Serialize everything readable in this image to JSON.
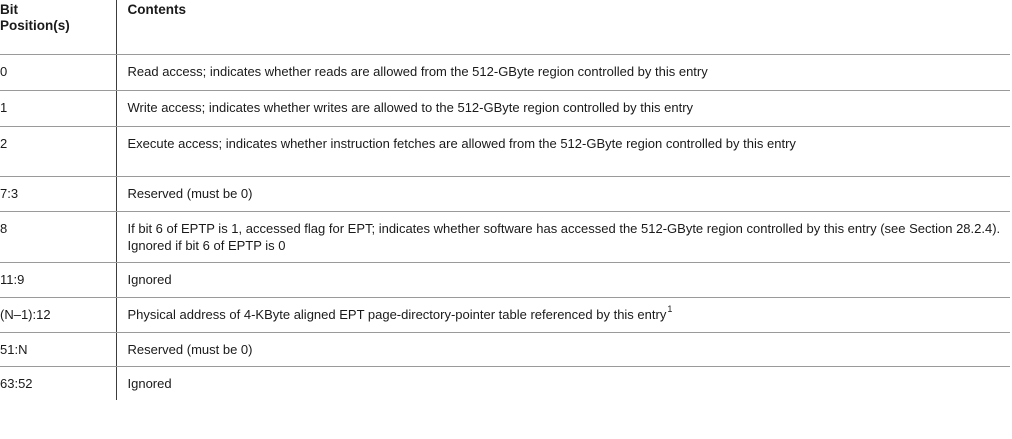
{
  "table": {
    "headers": [
      "Bit\nPosition(s)",
      "Contents"
    ],
    "header_col1_line1": "Bit",
    "header_col1_line2": "Position(s)",
    "header_col2": "Contents",
    "rows": [
      {
        "bits": "0",
        "contents": "Read access; indicates whether reads are allowed from the 512-GByte region controlled by this entry"
      },
      {
        "bits": "1",
        "contents": "Write access; indicates whether writes are allowed to the 512-GByte region controlled by this entry"
      },
      {
        "bits": "2",
        "contents": "Execute access; indicates whether instruction fetches are allowed from the 512-GByte region controlled by this entry"
      },
      {
        "bits": "7:3",
        "contents": "Reserved (must be 0)"
      },
      {
        "bits": "8",
        "contents": "If bit 6 of EPTP is 1, accessed flag for EPT; indicates whether software has accessed the 512-GByte region controlled by this entry (see Section 28.2.4). Ignored if bit 6 of EPTP is 0"
      },
      {
        "bits": "11:9",
        "contents": "Ignored"
      },
      {
        "bits": "(N–1):12",
        "contents": "Physical address of 4-KByte aligned EPT page-directory-pointer table referenced by this entry",
        "footnote": "1"
      },
      {
        "bits": "51:N",
        "contents": "Reserved (must be 0)"
      },
      {
        "bits": "63:52",
        "contents": "Ignored"
      }
    ]
  }
}
